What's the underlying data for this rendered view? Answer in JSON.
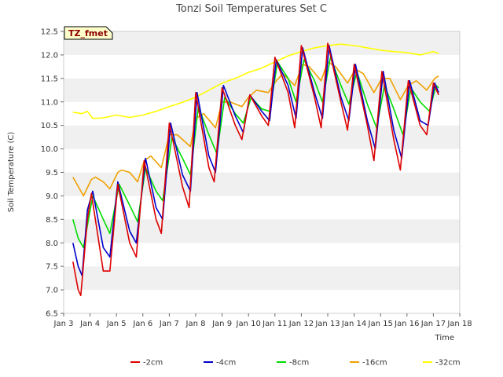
{
  "chart_data": {
    "type": "line",
    "title": "Tonzi Soil Temperatures Set C",
    "xlabel": "Time",
    "ylabel": "Soil Temperature (C)",
    "badge": "TZ_fmet",
    "xlim": [
      3,
      18
    ],
    "ylim": [
      6.5,
      12.5
    ],
    "x_ticks": [
      3,
      4,
      5,
      6,
      7,
      8,
      9,
      10,
      11,
      12,
      13,
      14,
      15,
      16,
      17,
      18
    ],
    "x_tick_labels": [
      "Jan 3",
      "Jan 4",
      "Jan 5",
      "Jan 6",
      "Jan 7",
      "Jan 8",
      "Jan 9",
      "Jan 10",
      "Jan 11",
      "Jan 12",
      "Jan 13",
      "Jan 14",
      "Jan 15",
      "Jan 16",
      "Jan 17",
      "Jan 18"
    ],
    "y_ticks": [
      6.5,
      7.0,
      7.5,
      8.0,
      8.5,
      9.0,
      9.5,
      10.0,
      10.5,
      11.0,
      11.5,
      12.0,
      12.5
    ],
    "y_tick_labels": [
      "6.5",
      "7.0",
      "7.5",
      "8.0",
      "8.5",
      "9.0",
      "9.5",
      "10.0",
      "10.5",
      "11.0",
      "11.5",
      "12.0",
      "12.5"
    ],
    "legend_position": "bottom",
    "series": [
      {
        "name": "-2cm",
        "color": "#dd0000",
        "x": [
          3.35,
          3.55,
          3.65,
          3.9,
          4.05,
          4.5,
          4.75,
          5.05,
          5.5,
          5.75,
          6.05,
          6.5,
          6.7,
          7.0,
          7.5,
          7.75,
          8.0,
          8.5,
          8.7,
          9.0,
          9.5,
          9.75,
          10.05,
          10.5,
          10.75,
          11.0,
          11.5,
          11.75,
          12.0,
          12.5,
          12.75,
          13.0,
          13.5,
          13.75,
          14.0,
          14.5,
          14.75,
          15.05,
          15.5,
          15.75,
          16.05,
          16.5,
          16.75,
          17.0,
          17.2
        ],
        "values": [
          7.6,
          7.0,
          6.88,
          8.5,
          9.05,
          7.4,
          7.4,
          9.25,
          8.0,
          7.7,
          9.75,
          8.5,
          8.2,
          10.55,
          9.2,
          8.75,
          11.2,
          9.6,
          9.3,
          11.3,
          10.5,
          10.2,
          11.15,
          10.7,
          10.5,
          11.95,
          11.2,
          10.45,
          12.2,
          11.1,
          10.45,
          12.25,
          11.0,
          10.4,
          11.8,
          10.5,
          9.75,
          11.65,
          10.2,
          9.55,
          11.45,
          10.5,
          10.3,
          11.4,
          11.15
        ]
      },
      {
        "name": "-4cm",
        "color": "#0000cc",
        "x": [
          3.35,
          3.55,
          3.7,
          3.9,
          4.1,
          4.5,
          4.75,
          5.05,
          5.5,
          5.75,
          6.1,
          6.5,
          6.75,
          7.05,
          7.5,
          7.8,
          8.05,
          8.5,
          8.75,
          9.05,
          9.5,
          9.8,
          10.05,
          10.5,
          10.8,
          11.05,
          11.5,
          11.8,
          12.05,
          12.5,
          12.8,
          13.05,
          13.5,
          13.8,
          14.05,
          14.5,
          14.8,
          15.1,
          15.5,
          15.8,
          16.1,
          16.5,
          16.8,
          17.05,
          17.2
        ],
        "values": [
          8.0,
          7.5,
          7.3,
          8.7,
          9.1,
          7.9,
          7.7,
          9.3,
          8.25,
          8.0,
          9.8,
          8.75,
          8.5,
          10.55,
          9.45,
          9.1,
          11.2,
          9.85,
          9.5,
          11.35,
          10.7,
          10.35,
          11.15,
          10.8,
          10.6,
          11.9,
          11.35,
          10.65,
          12.15,
          11.2,
          10.65,
          12.2,
          11.1,
          10.6,
          11.8,
          10.6,
          10.0,
          11.65,
          10.4,
          9.8,
          11.45,
          10.6,
          10.5,
          11.4,
          11.2
        ]
      },
      {
        "name": "-8cm",
        "color": "#00dd00",
        "x": [
          3.35,
          3.55,
          3.75,
          4.1,
          4.5,
          4.75,
          5.1,
          5.5,
          5.8,
          6.1,
          6.5,
          6.75,
          7.1,
          7.5,
          7.8,
          8.1,
          8.5,
          8.8,
          9.1,
          9.5,
          9.8,
          10.1,
          10.5,
          10.8,
          11.1,
          11.5,
          11.8,
          12.1,
          12.5,
          12.8,
          13.1,
          13.5,
          13.8,
          14.1,
          14.5,
          14.85,
          15.15,
          15.5,
          15.85,
          16.15,
          16.5,
          16.85,
          17.1,
          17.2
        ],
        "values": [
          8.5,
          8.1,
          7.9,
          9.0,
          8.5,
          8.2,
          9.25,
          8.8,
          8.45,
          9.6,
          9.1,
          8.9,
          10.25,
          9.8,
          9.45,
          10.9,
          10.3,
          9.9,
          11.1,
          10.75,
          10.55,
          11.1,
          10.85,
          10.8,
          11.85,
          11.5,
          11.0,
          11.9,
          11.45,
          11.0,
          11.95,
          11.35,
          10.95,
          11.65,
          10.95,
          10.45,
          11.35,
          10.85,
          10.3,
          11.3,
          11.0,
          10.8,
          11.35,
          11.3
        ]
      },
      {
        "name": "-16cm",
        "color": "#f0a000",
        "x": [
          3.35,
          3.6,
          3.75,
          4.05,
          4.2,
          4.5,
          4.75,
          5.05,
          5.2,
          5.5,
          5.8,
          6.05,
          6.3,
          6.7,
          7.0,
          7.3,
          7.8,
          8.0,
          8.3,
          8.75,
          9.0,
          9.3,
          9.75,
          10.0,
          10.3,
          10.75,
          11.05,
          11.3,
          11.75,
          12.05,
          12.3,
          12.75,
          13.0,
          13.3,
          13.75,
          14.05,
          14.35,
          14.75,
          15.05,
          15.35,
          15.75,
          16.05,
          16.35,
          16.75,
          17.05,
          17.2
        ],
        "values": [
          9.4,
          9.15,
          9.0,
          9.35,
          9.4,
          9.3,
          9.15,
          9.5,
          9.55,
          9.5,
          9.3,
          9.75,
          9.85,
          9.6,
          10.3,
          10.3,
          10.05,
          10.65,
          10.75,
          10.45,
          11.0,
          11.0,
          10.9,
          11.1,
          11.25,
          11.2,
          11.45,
          11.6,
          11.35,
          11.8,
          11.75,
          11.45,
          11.85,
          11.75,
          11.4,
          11.7,
          11.6,
          11.2,
          11.5,
          11.5,
          11.05,
          11.35,
          11.45,
          11.25,
          11.5,
          11.55
        ]
      },
      {
        "name": "-32cm",
        "color": "#ffff00",
        "x": [
          3.35,
          3.7,
          3.9,
          4.1,
          4.5,
          5.0,
          5.5,
          6.0,
          6.5,
          7.0,
          7.5,
          8.0,
          8.5,
          9.0,
          9.5,
          10.0,
          10.5,
          11.0,
          11.5,
          12.0,
          12.5,
          13.0,
          13.5,
          14.0,
          14.5,
          15.0,
          15.5,
          16.0,
          16.5,
          17.0,
          17.2
        ],
        "values": [
          10.78,
          10.75,
          10.8,
          10.65,
          10.66,
          10.72,
          10.67,
          10.72,
          10.8,
          10.9,
          10.99,
          11.1,
          11.25,
          11.4,
          11.5,
          11.63,
          11.72,
          11.85,
          11.98,
          12.07,
          12.15,
          12.2,
          12.23,
          12.2,
          12.15,
          12.1,
          12.07,
          12.05,
          12.0,
          12.07,
          12.03
        ]
      }
    ]
  }
}
